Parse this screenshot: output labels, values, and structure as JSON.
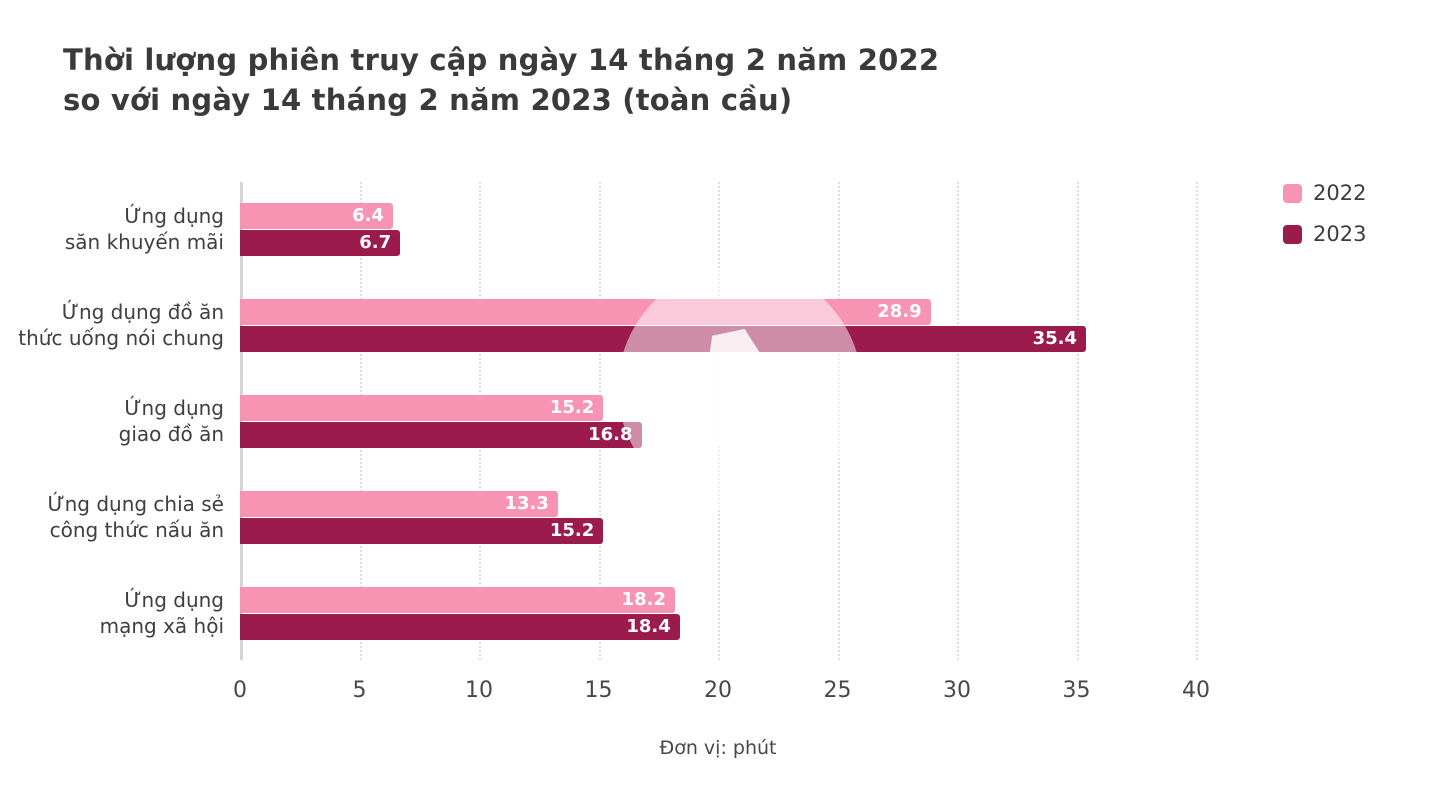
{
  "title": {
    "line1": "Thời lượng phiên truy cập ngày 14 tháng 2 năm 2022",
    "line2": "so với ngày 14 tháng 2 năm 2023 (toàn cầu)"
  },
  "watermark_glyph": "A",
  "chart_data": {
    "type": "bar",
    "orientation": "horizontal",
    "title": "Thời lượng phiên truy cập ngày 14 tháng 2 năm 2022 so với ngày 14 tháng 2 năm 2023 (toàn cầu)",
    "categories": [
      "Ứng dụng săn khuyến mãi",
      "Ứng dụng đồ ăn thức uống nói chung",
      "Ứng dụng giao đồ ăn",
      "Ứng dụng chia sẻ công thức nấu ăn",
      "Ứng dụng mạng xã hội"
    ],
    "category_lines": [
      [
        "Ứng dụng",
        "săn khuyến mãi"
      ],
      [
        "Ứng dụng đồ ăn",
        "thức uống nói chung"
      ],
      [
        "Ứng dụng",
        "giao đồ ăn"
      ],
      [
        "Ứng dụng chia sẻ",
        "công thức nấu ăn"
      ],
      [
        "Ứng dụng",
        "mạng xã hội"
      ]
    ],
    "series": [
      {
        "name": "2022",
        "color": "#F794B4",
        "values": [
          6.4,
          28.9,
          15.2,
          13.3,
          18.2
        ]
      },
      {
        "name": "2023",
        "color": "#9C1B4D",
        "values": [
          6.7,
          35.4,
          16.8,
          15.2,
          18.4
        ]
      }
    ],
    "x_ticks": [
      0,
      5,
      10,
      15,
      20,
      25,
      30,
      35,
      40
    ],
    "xlim": [
      0,
      40
    ],
    "xlabel": "Đơn vị: phút",
    "grid": "dotted-vertical",
    "legend_position": "top-right",
    "value_labels": "inside-end-white"
  }
}
